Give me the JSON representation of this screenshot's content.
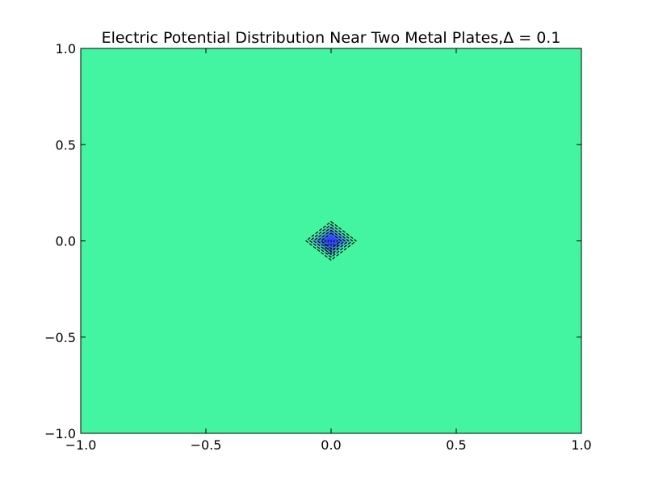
{
  "chart_data": {
    "type": "heatmap",
    "title": "Electric Potential Distribution Near Two Metal Plates,Δ = 0.1",
    "xlabel": "",
    "ylabel": "",
    "xlim": [
      -1.0,
      1.0
    ],
    "ylim": [
      -1.0,
      1.0
    ],
    "x_ticks": [
      -1.0,
      -0.5,
      0.0,
      0.5,
      1.0
    ],
    "y_ticks": [
      -1.0,
      -0.5,
      0.0,
      0.5,
      1.0
    ],
    "x_tick_labels": [
      "−1.0",
      "−0.5",
      "0.0",
      "0.5",
      "1.0"
    ],
    "y_tick_labels": [
      "−1.0",
      "−0.5",
      "0.0",
      "0.5",
      "1.0"
    ],
    "grid": false,
    "background_color": "#43f5a0",
    "feature": {
      "center": [
        0.0,
        0.0
      ],
      "half_width": 0.1,
      "levels": [
        {
          "size": 0.09,
          "color": "#46d7b5"
        },
        {
          "size": 0.075,
          "color": "#40b4c8"
        },
        {
          "size": 0.06,
          "color": "#3c8ee0"
        },
        {
          "size": 0.045,
          "color": "#3b6cf0"
        },
        {
          "size": 0.03,
          "color": "#2f45ff"
        }
      ],
      "contour_color": "#000000",
      "contour_dashed": true
    }
  }
}
